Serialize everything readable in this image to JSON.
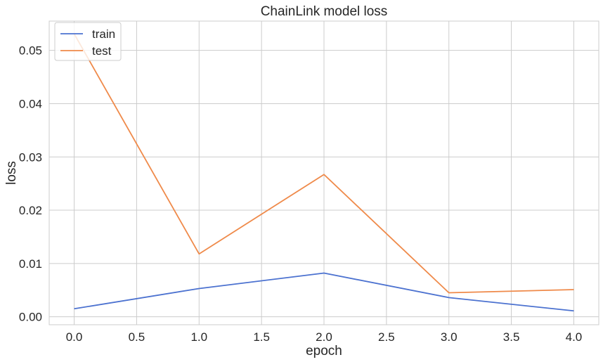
{
  "chart_data": {
    "type": "line",
    "title": "ChainLink model loss",
    "xlabel": "epoch",
    "ylabel": "loss",
    "x": [
      0,
      1,
      2,
      3,
      4
    ],
    "xlim": [
      -0.2,
      4.2
    ],
    "ylim": [
      -0.0015,
      0.0555
    ],
    "xticks": [
      0.0,
      0.5,
      1.0,
      1.5,
      2.0,
      2.5,
      3.0,
      3.5,
      4.0
    ],
    "xtick_labels": [
      "0.0",
      "0.5",
      "1.0",
      "1.5",
      "2.0",
      "2.5",
      "3.0",
      "3.5",
      "4.0"
    ],
    "yticks": [
      0.0,
      0.01,
      0.02,
      0.03,
      0.04,
      0.05
    ],
    "ytick_labels": [
      "0.00",
      "0.01",
      "0.02",
      "0.03",
      "0.04",
      "0.05"
    ],
    "grid": true,
    "legend_position": "top-left",
    "series": [
      {
        "name": "train",
        "color": "#4c72d0",
        "values": [
          0.0015,
          0.0053,
          0.0082,
          0.0036,
          0.0011
        ]
      },
      {
        "name": "test",
        "color": "#ef8a4a",
        "values": [
          0.0531,
          0.0118,
          0.0267,
          0.0045,
          0.0051
        ]
      }
    ]
  }
}
